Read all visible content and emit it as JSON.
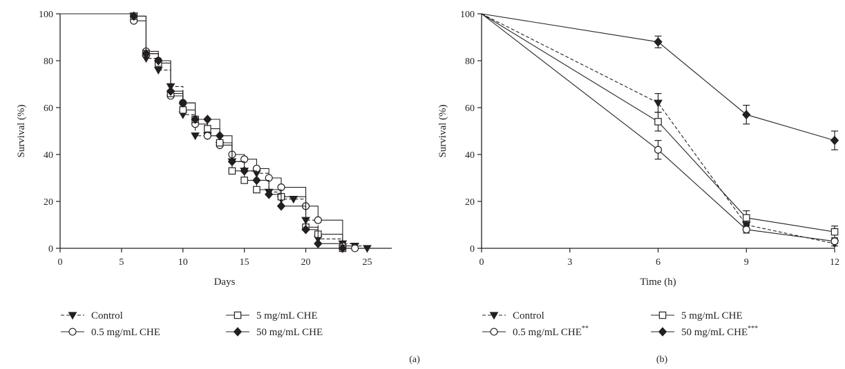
{
  "chart_data": [
    {
      "panel_label": "(a)",
      "type": "line",
      "step": true,
      "xlabel": "Days",
      "ylabel": "Survival (%)",
      "xlim": [
        0,
        27
      ],
      "ylim": [
        0,
        100
      ],
      "xticks": [
        0,
        5,
        10,
        15,
        20,
        25
      ],
      "yticks": [
        0,
        20,
        40,
        60,
        80,
        100
      ],
      "legend_position": "bottom",
      "series": [
        {
          "name": "Control",
          "marker": "triangle-down-filled",
          "dash": "dashed",
          "x": [
            0,
            6,
            7,
            8,
            9,
            10,
            11,
            12,
            13,
            14,
            15,
            16,
            17,
            18,
            19,
            20,
            21,
            23,
            24,
            25
          ],
          "y": [
            100,
            99,
            81,
            76,
            69,
            57,
            48,
            48,
            44,
            37,
            33,
            32,
            24,
            21,
            21,
            12,
            4,
            2,
            1,
            0
          ]
        },
        {
          "name": "0.5 mg/mL CHE",
          "label_text": "0.5 mg/mL CHE",
          "marker": "circle-open",
          "dash": "solid",
          "x": [
            0,
            6,
            7,
            8,
            9,
            10,
            11,
            12,
            13,
            14,
            15,
            16,
            17,
            18,
            20,
            21,
            23,
            24
          ],
          "y": [
            100,
            97,
            84,
            80,
            65,
            62,
            53,
            48,
            44,
            40,
            38,
            34,
            30,
            26,
            18,
            12,
            1,
            0
          ]
        },
        {
          "name": "5 mg/mL CHE",
          "label_text": "5 mg/mL CHE",
          "marker": "square-open",
          "dash": "solid",
          "x": [
            0,
            6,
            7,
            8,
            9,
            10,
            11,
            12,
            13,
            14,
            15,
            16,
            18,
            20,
            21,
            23
          ],
          "y": [
            100,
            99,
            83,
            79,
            66,
            59,
            55,
            51,
            45,
            33,
            29,
            25,
            22,
            9,
            6,
            0
          ]
        },
        {
          "name": "50 mg/mL CHE",
          "label_text": "50 mg/mL CHE",
          "marker": "diamond-filled",
          "dash": "solid",
          "x": [
            0,
            6,
            7,
            8,
            9,
            10,
            11,
            12,
            13,
            14,
            15,
            16,
            17,
            18,
            20,
            21,
            23
          ],
          "y": [
            100,
            99,
            83,
            80,
            67,
            62,
            55,
            55,
            48,
            37,
            33,
            29,
            23,
            18,
            8,
            2,
            0
          ]
        }
      ]
    },
    {
      "panel_label": "(b)",
      "type": "line",
      "step": false,
      "xlabel": "Time (h)",
      "ylabel": "Survival (%)",
      "xlim": [
        0,
        12
      ],
      "ylim": [
        0,
        100
      ],
      "xticks": [
        0,
        3,
        6,
        9,
        12
      ],
      "yticks": [
        0,
        20,
        40,
        60,
        80,
        100
      ],
      "legend_position": "bottom",
      "series": [
        {
          "name": "Control",
          "marker": "triangle-down-filled",
          "dash": "dashed",
          "x": [
            0,
            6,
            9,
            12
          ],
          "y": [
            100,
            62,
            10,
            2
          ],
          "err": [
            0,
            4,
            2,
            1
          ]
        },
        {
          "name": "0.5 mg/mL CHE",
          "label_text": "0.5 mg/mL CHE",
          "label_sup": "**",
          "marker": "circle-open",
          "dash": "solid",
          "x": [
            0,
            6,
            9,
            12
          ],
          "y": [
            100,
            42,
            8,
            3
          ],
          "err": [
            0,
            4,
            1.5,
            1
          ]
        },
        {
          "name": "5 mg/mL CHE",
          "label_text": "5 mg/mL CHE",
          "marker": "square-open",
          "dash": "solid",
          "x": [
            0,
            6,
            9,
            12
          ],
          "y": [
            100,
            54,
            13,
            7
          ],
          "err": [
            0,
            4,
            3,
            2.5
          ]
        },
        {
          "name": "50 mg/mL CHE",
          "label_text": "50 mg/mL CHE",
          "label_sup": "***",
          "marker": "diamond-filled",
          "dash": "solid",
          "x": [
            0,
            6,
            9,
            12
          ],
          "y": [
            100,
            88,
            57,
            46
          ],
          "err": [
            0,
            2.5,
            4,
            4
          ]
        }
      ]
    }
  ]
}
